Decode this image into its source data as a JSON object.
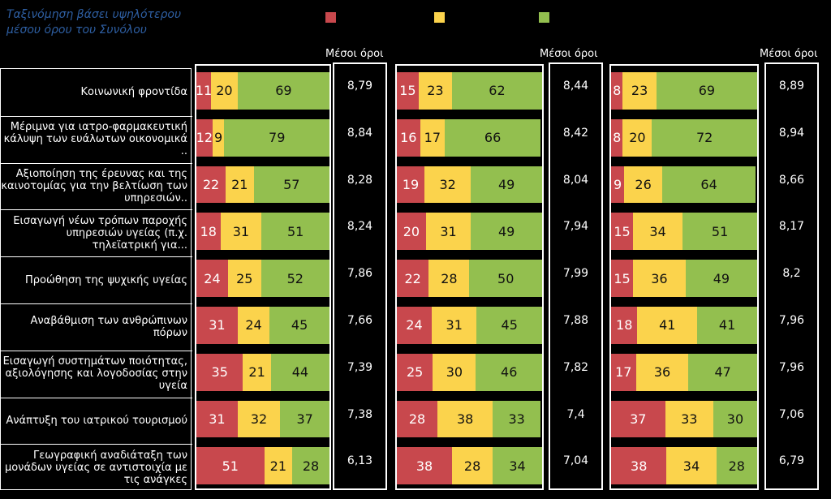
{
  "sort_note": "Ταξινόμηση βάσει υψηλότερου μέσου όρου του Συνόλου",
  "colors": {
    "red": "#c8484d",
    "yellow": "#fbd34c",
    "green": "#93bf4f"
  },
  "means_header": "Μέσοι όροι",
  "chart_data": {
    "type": "bar",
    "stacked": true,
    "categories": [
      "Κοινωνική φροντίδα",
      "Μέριμνα για ιατρο-φαρμακευτική κάλυψη των ευάλωτων οικονομικά ..",
      "Αξιοποίηση της έρευνας και της καινοτομίας για την βελτίωση των υπηρεσιών..",
      "Εισαγωγή νέων τρόπων παροχής υπηρεσιών υγείας (π.χ. τηλεϊατρική για...",
      "Προώθηση της ψυχικής υγείας",
      "Αναβάθμιση των ανθρώπινων πόρων",
      "Εισαγωγή συστημάτων ποιότητας, αξιολόγησης και λογοδοσίας στην υγεία",
      "Ανάπτυξη του ιατρικού τουρισμού",
      "Γεωγραφική αναδιάταξη των μονάδων υγείας σε αντιστοιχία με τις ανάγκες"
    ],
    "groups": [
      {
        "series": [
          {
            "color": "red",
            "values": [
              11,
              12,
              22,
              18,
              24,
              31,
              35,
              31,
              51
            ]
          },
          {
            "color": "yellow",
            "values": [
              20,
              9,
              21,
              31,
              25,
              24,
              21,
              32,
              21
            ]
          },
          {
            "color": "green",
            "values": [
              69,
              79,
              57,
              51,
              52,
              45,
              44,
              37,
              28
            ]
          }
        ],
        "means": [
          "8,79",
          "8,84",
          "8,28",
          "8,24",
          "7,86",
          "7,66",
          "7,39",
          "7,38",
          "6,13"
        ]
      },
      {
        "series": [
          {
            "color": "red",
            "values": [
              15,
              16,
              19,
              20,
              22,
              24,
              25,
              28,
              38
            ]
          },
          {
            "color": "yellow",
            "values": [
              23,
              17,
              32,
              31,
              28,
              31,
              30,
              38,
              28
            ]
          },
          {
            "color": "green",
            "values": [
              62,
              66,
              49,
              49,
              50,
              45,
              46,
              33,
              34
            ]
          }
        ],
        "means": [
          "8,44",
          "8,42",
          "8,04",
          "7,94",
          "7,99",
          "7,88",
          "7,82",
          "7,4",
          "7,04"
        ]
      },
      {
        "series": [
          {
            "color": "red",
            "values": [
              8,
              8,
              9,
              15,
              15,
              18,
              17,
              37,
              38
            ]
          },
          {
            "color": "yellow",
            "values": [
              23,
              20,
              26,
              34,
              36,
              41,
              36,
              33,
              34
            ]
          },
          {
            "color": "green",
            "values": [
              69,
              72,
              64,
              51,
              49,
              41,
              47,
              30,
              28
            ]
          }
        ],
        "means": [
          "8,89",
          "8,94",
          "8,66",
          "8,17",
          "8,2",
          "7,96",
          "7,96",
          "7,06",
          "6,79"
        ]
      }
    ],
    "xlim": [
      0,
      100
    ]
  }
}
